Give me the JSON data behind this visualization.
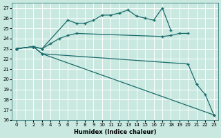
{
  "xlabel": "Humidex (Indice chaleur)",
  "bg_color": "#c8e8e0",
  "grid_color": "#ffffff",
  "line_color": "#1a6b6b",
  "xlim": [
    -0.5,
    23.5
  ],
  "ylim": [
    16,
    27.5
  ],
  "xticks": [
    0,
    1,
    2,
    3,
    4,
    5,
    6,
    7,
    8,
    9,
    10,
    11,
    12,
    13,
    14,
    15,
    16,
    17,
    18,
    19,
    20,
    21,
    22,
    23
  ],
  "yticks": [
    16,
    17,
    18,
    19,
    20,
    21,
    22,
    23,
    24,
    25,
    26,
    27
  ],
  "lines": [
    {
      "x": [
        0,
        2,
        3,
        6,
        7,
        8,
        9,
        10,
        11,
        12,
        13,
        14,
        15,
        16,
        17,
        18
      ],
      "y": [
        23.0,
        23.2,
        23.0,
        25.8,
        25.5,
        25.5,
        25.8,
        26.3,
        26.3,
        26.5,
        26.8,
        26.2,
        26.0,
        25.8,
        27.0,
        24.8
      ]
    },
    {
      "x": [
        0,
        2,
        3,
        4,
        5,
        6,
        7,
        17,
        18,
        19,
        20
      ],
      "y": [
        23.0,
        23.2,
        23.0,
        23.5,
        24.0,
        24.3,
        24.5,
        24.2,
        24.3,
        24.5,
        24.5
      ]
    },
    {
      "x": [
        0,
        2,
        3,
        20,
        21,
        22,
        23
      ],
      "y": [
        23.0,
        23.2,
        22.5,
        21.5,
        19.5,
        18.5,
        16.5
      ]
    },
    {
      "x": [
        0,
        2,
        3,
        23
      ],
      "y": [
        23.0,
        23.2,
        22.5,
        16.5
      ]
    }
  ]
}
